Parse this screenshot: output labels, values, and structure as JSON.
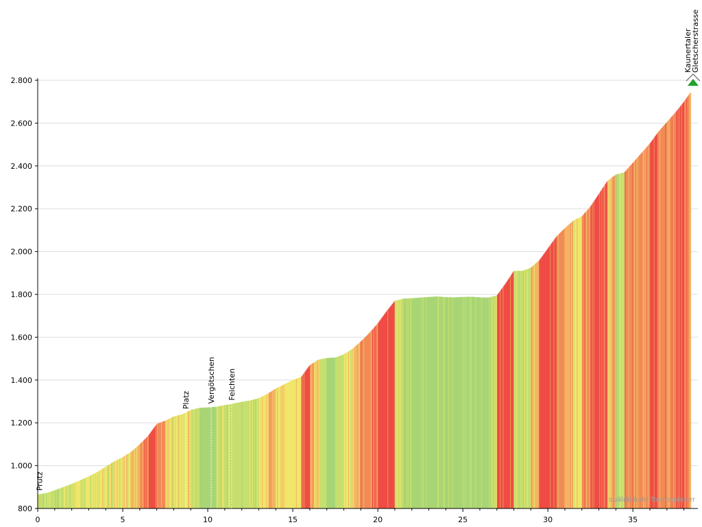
{
  "chart_data": {
    "type": "area",
    "title": "",
    "xlabel": "",
    "ylabel": "",
    "xlim": [
      0,
      38.5
    ],
    "ylim": [
      800,
      2800
    ],
    "grid": true,
    "x_ticks": [
      0,
      5,
      10,
      15,
      20,
      25,
      30,
      35
    ],
    "x_tick_labels": [
      "0",
      "5",
      "10",
      "15",
      "20",
      "25",
      "30",
      "35"
    ],
    "y_ticks": [
      800,
      1000,
      1200,
      1400,
      1600,
      1800,
      2000,
      2200,
      2400,
      2600,
      2800
    ],
    "y_tick_labels": [
      "800",
      "1.000",
      "1.200",
      "1.400",
      "1.600",
      "1.800",
      "2.000",
      "2.200",
      "2.400",
      "2.600",
      "2.800"
    ],
    "series": [
      {
        "x": [
          0,
          0.5,
          1.0,
          1.5,
          2.0,
          2.5,
          3.0,
          3.5,
          4.0,
          4.5,
          5.0,
          5.5,
          6.0,
          6.5,
          7.0,
          7.5,
          8.0,
          8.5,
          9.0,
          9.5,
          10.0,
          10.5,
          11.0,
          11.5,
          12.0,
          12.5,
          13.0,
          13.5,
          14.0,
          14.5,
          15.0,
          15.5,
          16.0,
          16.5,
          17.0,
          17.5,
          18.0,
          18.5,
          19.0,
          19.5,
          20.0,
          20.5,
          21.0,
          21.5,
          22.0,
          22.5,
          23.0,
          23.5,
          24.0,
          24.5,
          25.0,
          25.5,
          26.0,
          26.5,
          27.0,
          27.5,
          28.0,
          28.5,
          29.0,
          29.5,
          30.0,
          30.5,
          31.0,
          31.5,
          32.0,
          32.5,
          33.0,
          33.5,
          34.0,
          34.5,
          35.0,
          35.5,
          36.0,
          36.5,
          37.0,
          37.5,
          38.0,
          38.4
        ],
        "y": [
          865,
          872,
          885,
          900,
          915,
          932,
          950,
          970,
          995,
          1020,
          1040,
          1065,
          1100,
          1140,
          1195,
          1210,
          1230,
          1240,
          1260,
          1270,
          1272,
          1275,
          1283,
          1290,
          1298,
          1305,
          1315,
          1335,
          1360,
          1380,
          1400,
          1415,
          1470,
          1495,
          1503,
          1505,
          1520,
          1545,
          1580,
          1620,
          1665,
          1720,
          1770,
          1780,
          1782,
          1785,
          1788,
          1790,
          1787,
          1786,
          1788,
          1789,
          1786,
          1785,
          1795,
          1850,
          1910,
          1910,
          1925,
          1960,
          2015,
          2070,
          2110,
          2145,
          2165,
          2210,
          2270,
          2330,
          2360,
          2370,
          2415,
          2460,
          2505,
          2560,
          2605,
          2650,
          2700,
          2745
        ],
        "gradient": [
          2,
          3,
          3,
          3,
          4,
          4,
          4,
          5,
          5,
          5,
          5,
          7,
          9,
          11,
          8,
          5,
          4,
          4,
          3,
          1,
          1,
          2,
          2,
          2,
          2,
          3,
          4,
          6,
          5,
          5,
          4,
          10,
          6,
          2,
          1,
          3,
          5,
          7,
          8,
          9,
          11,
          10,
          3,
          1,
          1,
          1,
          1,
          0,
          0,
          1,
          0,
          0,
          0,
          2,
          11,
          12,
          3,
          3,
          6,
          11,
          11,
          9,
          7,
          4,
          9,
          12,
          12,
          7,
          2,
          9,
          9,
          9,
          11,
          9,
          9,
          10,
          9,
          10
        ]
      }
    ],
    "gradient_colors": [
      "#a8d575",
      "#c6df6e",
      "#efe66a",
      "#f5b464",
      "#f28a56",
      "#ee4d45"
    ],
    "annotations": [
      {
        "label": "Prutz",
        "x": 0.1
      },
      {
        "label": "Platz",
        "x": 8.7
      },
      {
        "label": "Vergötschen",
        "x": 10.2
      },
      {
        "label": "Feichten",
        "x": 11.4
      },
      {
        "label": "Kaunertaler Gletscherstrasse",
        "x": 38.4,
        "lines": [
          "Kaunertaler",
          "Gletscherstrasse"
        ],
        "has_flag": true
      }
    ],
    "flag_color": "#22a32b",
    "watermark": "quäldich.de Tourenplaner"
  }
}
